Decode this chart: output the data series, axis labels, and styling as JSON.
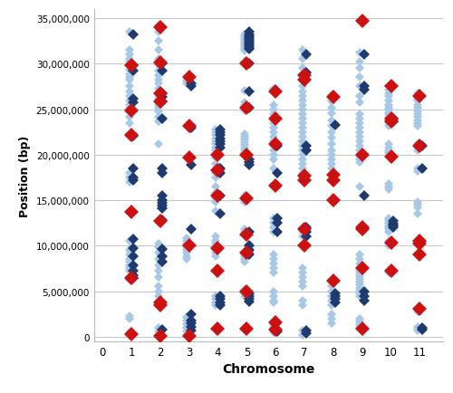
{
  "title": "",
  "xlabel": "Chromosome",
  "ylabel": "Position (bp)",
  "xlim": [
    -0.3,
    11.8
  ],
  "ylim": [
    -500000,
    36000000
  ],
  "yticks": [
    0,
    5000000,
    10000000,
    15000000,
    20000000,
    25000000,
    30000000,
    35000000
  ],
  "xticks": [
    0,
    1,
    2,
    3,
    4,
    5,
    6,
    7,
    8,
    9,
    10,
    11
  ],
  "background_color": "#ffffff",
  "grid_color": "#c8c8c8",
  "light_blue": "#a8c8e8",
  "dark_blue": "#1e3a6e",
  "red": "#cc1111",
  "marker_size_light": 5,
  "marker_size_dark": 6,
  "marker_size_red": 8,
  "snp_data": {
    "1": {
      "light": [
        33500000,
        31500000,
        31000000,
        30500000,
        30200000,
        29900000,
        29700000,
        29300000,
        28800000,
        28500000,
        28200000,
        27500000,
        27000000,
        26500000,
        26000000,
        25500000,
        25200000,
        24800000,
        24200000,
        23500000,
        22200000,
        22000000,
        18000000,
        17500000,
        17000000,
        10500000,
        9500000,
        9000000,
        8500000,
        8200000,
        7800000,
        7500000,
        7200000,
        6500000,
        6200000,
        2300000,
        2000000,
        500000
      ],
      "dark": [
        33200000,
        29800000,
        29200000,
        26200000,
        25800000,
        22100000,
        18500000,
        17500000,
        17200000,
        10700000,
        9700000,
        8800000,
        7800000,
        7200000,
        6700000,
        6400000
      ],
      "red": [
        29800000,
        24900000,
        22200000,
        13700000,
        6400000,
        300000
      ]
    },
    "2": {
      "light": [
        34200000,
        33500000,
        32500000,
        31500000,
        30500000,
        29800000,
        29200000,
        28700000,
        28200000,
        27800000,
        27300000,
        26800000,
        26500000,
        26200000,
        25800000,
        25500000,
        25200000,
        24800000,
        24200000,
        23700000,
        21200000,
        10200000,
        9800000,
        9200000,
        8500000,
        7800000,
        7200000,
        6500000,
        5500000,
        5000000,
        4500000,
        4000000,
        1000000,
        600000,
        200000
      ],
      "dark": [
        30000000,
        29200000,
        26800000,
        26400000,
        25900000,
        24000000,
        18500000,
        18000000,
        15500000,
        15000000,
        14700000,
        14400000,
        14100000,
        12800000,
        9600000,
        8800000,
        8200000,
        800000
      ],
      "red": [
        34000000,
        30100000,
        26800000,
        25900000,
        12700000,
        3800000,
        3500000,
        100000
      ]
    },
    "3": {
      "light": [
        28100000,
        27800000,
        10800000,
        10500000,
        10200000,
        9800000,
        9500000,
        9200000,
        8800000,
        8500000,
        2200000,
        1800000,
        1400000,
        1000000,
        600000,
        200000
      ],
      "dark": [
        27800000,
        27500000,
        23000000,
        18900000,
        11800000,
        2500000,
        1800000,
        1500000,
        1100000,
        700000
      ],
      "red": [
        28500000,
        23200000,
        19700000,
        10000000,
        100000
      ]
    },
    "4": {
      "light": [
        22800000,
        22500000,
        22200000,
        21800000,
        21500000,
        21200000,
        20800000,
        20500000,
        20000000,
        19700000,
        19000000,
        18500000,
        18000000,
        17500000,
        16500000,
        15800000,
        15500000,
        15200000,
        14800000,
        13800000,
        11000000,
        10500000,
        10200000,
        9500000,
        9200000,
        8800000,
        7200000,
        4500000,
        4200000,
        3800000,
        3500000
      ],
      "dark": [
        22800000,
        22500000,
        22200000,
        21800000,
        21500000,
        21200000,
        20800000,
        18500000,
        18000000,
        15500000,
        13500000,
        4500000,
        4200000,
        3800000,
        3500000
      ],
      "red": [
        20000000,
        18300000,
        15500000,
        9700000,
        7200000,
        900000
      ]
    },
    "5": {
      "light": [
        33200000,
        33000000,
        32800000,
        32600000,
        32400000,
        32200000,
        32000000,
        31800000,
        31600000,
        31400000,
        30200000,
        27100000,
        25800000,
        25500000,
        25200000,
        24900000,
        22300000,
        22000000,
        21700000,
        21400000,
        21100000,
        20800000,
        20500000,
        20200000,
        19900000,
        15500000,
        15200000,
        14800000,
        11800000,
        11500000,
        11200000,
        9200000,
        9000000,
        8800000,
        8500000,
        8200000,
        5200000,
        5000000,
        4800000,
        4500000,
        800000
      ],
      "dark": [
        33500000,
        33200000,
        33000000,
        32800000,
        32600000,
        32400000,
        32200000,
        32000000,
        31800000,
        31600000,
        30000000,
        27000000,
        25200000,
        19500000,
        19200000,
        18900000,
        11500000,
        10000000,
        9500000,
        9000000,
        4800000,
        4500000,
        4200000,
        3900000
      ],
      "red": [
        30000000,
        25200000,
        20000000,
        15200000,
        11200000,
        9200000,
        5000000,
        900000
      ]
    },
    "6": {
      "light": [
        27300000,
        25500000,
        25000000,
        24500000,
        24000000,
        23500000,
        23000000,
        22500000,
        22000000,
        21500000,
        21000000,
        20500000,
        20000000,
        19500000,
        18500000,
        16700000,
        13000000,
        12500000,
        12000000,
        11500000,
        9000000,
        8500000,
        8000000,
        7500000,
        7000000,
        5000000,
        4500000,
        4000000,
        3800000,
        1700000,
        1400000,
        1100000,
        700000,
        500000
      ],
      "dark": [
        21000000,
        18000000,
        13000000,
        12500000,
        11500000,
        600000
      ],
      "red": [
        27000000,
        24000000,
        21200000,
        16600000,
        1600000,
        800000
      ]
    },
    "7": {
      "light": [
        31500000,
        30500000,
        29500000,
        28800000,
        28200000,
        27500000,
        27000000,
        26500000,
        26000000,
        25500000,
        25000000,
        24500000,
        24000000,
        23500000,
        23000000,
        22500000,
        22000000,
        21500000,
        21000000,
        20500000,
        20000000,
        19500000,
        19000000,
        18500000,
        18000000,
        17500000,
        12000000,
        11500000,
        11000000,
        7500000,
        7000000,
        6500000,
        6000000,
        5500000,
        4000000,
        3500000,
        700000,
        200000
      ],
      "dark": [
        31000000,
        29000000,
        21000000,
        20500000,
        12000000,
        11500000,
        11000000,
        700000,
        400000
      ],
      "red": [
        28700000,
        28200000,
        17700000,
        17200000,
        11800000,
        10000000
      ]
    },
    "8": {
      "light": [
        26600000,
        25900000,
        25200000,
        24600000,
        23800000,
        23200000,
        22500000,
        21900000,
        21200000,
        20500000,
        20000000,
        19500000,
        19000000,
        18500000,
        6000000,
        5500000,
        5000000,
        4500000,
        4000000,
        3500000,
        2500000,
        2000000,
        1500000
      ],
      "dark": [
        23300000,
        4800000,
        4500000,
        4200000,
        3800000
      ],
      "red": [
        26400000,
        17800000,
        17200000,
        15000000,
        6100000
      ]
    },
    "9": {
      "light": [
        31200000,
        30200000,
        29500000,
        28500000,
        27500000,
        26500000,
        25800000,
        24500000,
        24000000,
        23500000,
        23000000,
        22500000,
        22000000,
        21500000,
        21000000,
        20500000,
        20000000,
        19800000,
        19500000,
        19200000,
        16500000,
        9000000,
        8500000,
        8000000,
        7500000,
        7200000,
        6900000,
        6600000,
        6300000,
        6000000,
        5700000,
        5400000,
        5100000,
        4800000,
        4500000,
        2000000,
        1700000,
        1400000,
        1100000
      ],
      "dark": [
        31000000,
        27500000,
        27200000,
        15500000,
        5000000,
        4500000,
        4000000
      ],
      "red": [
        34700000,
        20000000,
        12000000,
        11800000,
        7500000,
        900000
      ]
    },
    "10": {
      "light": [
        27500000,
        27200000,
        26800000,
        26500000,
        26000000,
        25500000,
        25200000,
        25000000,
        24700000,
        24500000,
        24200000,
        23800000,
        23500000,
        23200000,
        21200000,
        20800000,
        20500000,
        20200000,
        16800000,
        16500000,
        16200000,
        13000000,
        12800000,
        12500000,
        12200000,
        12000000,
        11800000,
        11500000,
        10500000,
        10300000,
        10000000,
        7200000,
        7000000
      ],
      "dark": [
        24000000,
        23700000,
        12700000,
        12400000,
        12200000,
        12000000
      ],
      "red": [
        27500000,
        24000000,
        23700000,
        19800000,
        10300000,
        7200000
      ]
    },
    "11": {
      "light": [
        26800000,
        26500000,
        26200000,
        26000000,
        25500000,
        25200000,
        24800000,
        24500000,
        24200000,
        23800000,
        23500000,
        23200000,
        21200000,
        21000000,
        20800000,
        20500000,
        18500000,
        18200000,
        14800000,
        14500000,
        14200000,
        13500000,
        3200000,
        3000000,
        2800000,
        1100000,
        900000,
        700000
      ],
      "dark": [
        21000000,
        18500000,
        1000000,
        800000
      ],
      "red": [
        26500000,
        21000000,
        10500000,
        10200000,
        9000000,
        3100000
      ]
    }
  }
}
